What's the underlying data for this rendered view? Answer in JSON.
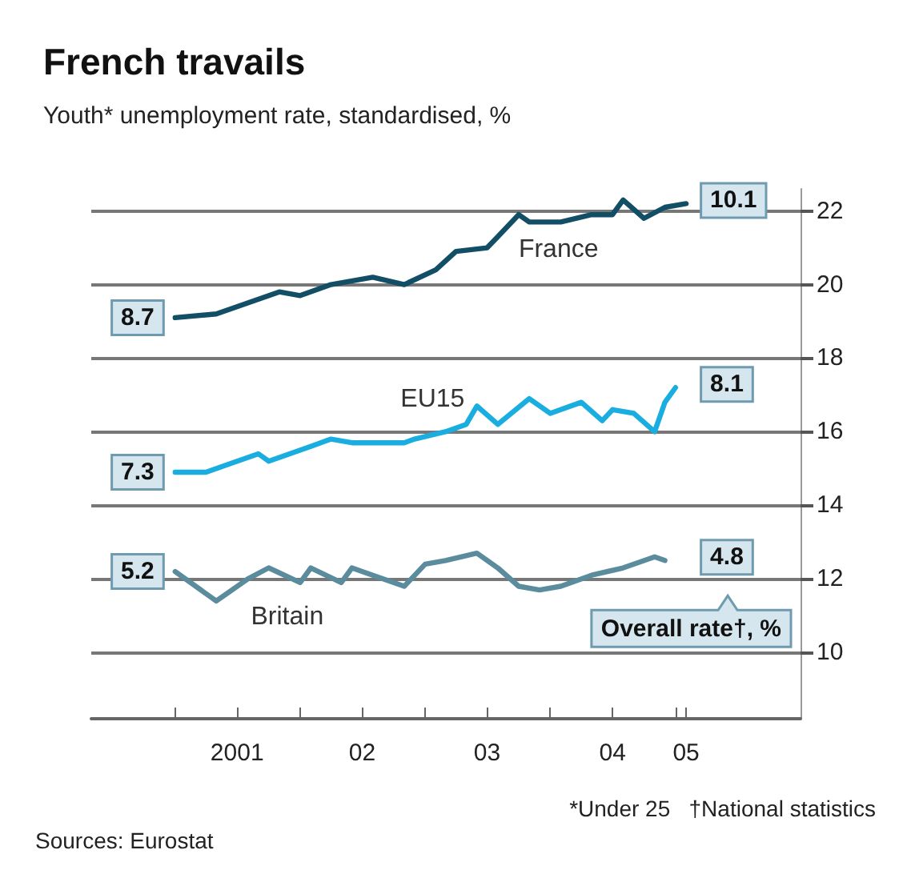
{
  "chart_data": {
    "type": "line",
    "title": "French travails",
    "subtitle": "Youth* unemployment rate, standardised, %",
    "series": [
      {
        "name": "France",
        "color": "#124e66",
        "x": [
          "2001-01",
          "2001-05",
          "2001-08",
          "2001-11",
          "2002-01",
          "2002-04",
          "2002-08",
          "2002-11",
          "2003-02",
          "2003-04",
          "2003-07",
          "2003-08",
          "2003-10",
          "2003-11",
          "2004-02",
          "2004-05",
          "2004-07",
          "2004-08",
          "2004-10",
          "2004-12",
          "2005-02"
        ],
        "values": [
          19.1,
          19.2,
          19.5,
          19.8,
          19.7,
          20.0,
          20.2,
          20.0,
          20.4,
          20.9,
          21.0,
          21.3,
          21.9,
          21.7,
          21.7,
          21.9,
          21.9,
          22.3,
          21.8,
          22.1,
          22.2
        ]
      },
      {
        "name": "EU15",
        "color": "#1aaee0",
        "x": [
          "2001-01",
          "2001-04",
          "2001-06",
          "2001-09",
          "2001-10",
          "2002-02",
          "2002-04",
          "2002-06",
          "2002-11",
          "2002-12",
          "2003-03",
          "2003-05",
          "2003-06",
          "2003-08",
          "2003-11",
          "2004-01",
          "2004-04",
          "2004-06",
          "2004-07",
          "2004-09",
          "2004-11",
          "2004-12",
          "2005-01"
        ],
        "values": [
          14.9,
          14.9,
          15.1,
          15.4,
          15.2,
          15.6,
          15.8,
          15.7,
          15.7,
          15.8,
          16.0,
          16.2,
          16.7,
          16.2,
          16.9,
          16.5,
          16.8,
          16.3,
          16.6,
          16.5,
          16.0,
          16.8,
          17.2
        ]
      },
      {
        "name": "Britain",
        "color": "#5b8c9e",
        "x": [
          "2001-01",
          "2001-05",
          "2001-08",
          "2001-10",
          "2002-01",
          "2002-02",
          "2002-05",
          "2002-06",
          "2002-08",
          "2002-11",
          "2003-01",
          "2003-03",
          "2003-06",
          "2003-08",
          "2003-10",
          "2003-12",
          "2004-02",
          "2004-05",
          "2004-08",
          "2004-11",
          "2004-12"
        ],
        "values": [
          12.2,
          11.4,
          12.0,
          12.3,
          11.9,
          12.3,
          11.9,
          12.3,
          12.1,
          11.8,
          12.4,
          12.5,
          12.7,
          12.3,
          11.8,
          11.7,
          11.8,
          12.1,
          12.3,
          12.6,
          12.5
        ]
      }
    ],
    "xlim": [
      "2000-05",
      "2006-01"
    ],
    "xticks": [
      {
        "value": "2001-01",
        "label": null
      },
      {
        "value": "2001-07",
        "label": "2001"
      },
      {
        "value": "2002-01",
        "label": null
      },
      {
        "value": "2002-07",
        "label": "02"
      },
      {
        "value": "2003-01",
        "label": null
      },
      {
        "value": "2003-07",
        "label": "03"
      },
      {
        "value": "2004-01",
        "label": null
      },
      {
        "value": "2004-07",
        "label": "04"
      },
      {
        "value": "2005-01",
        "label": null
      },
      {
        "value": "2005-02",
        "label": "05"
      }
    ],
    "ylim": [
      8.2,
      22.6
    ],
    "yticks": [
      10,
      12,
      14,
      16,
      18,
      20,
      22
    ],
    "grid": "y",
    "legend": false,
    "annotations": [
      {
        "text": "8.7",
        "x": "2001-01",
        "y": 19.1
      },
      {
        "text": "10.1",
        "x": "2005-02",
        "y": 22.2
      },
      {
        "text": "7.3",
        "x": "2001-01",
        "y": 14.9
      },
      {
        "text": "8.1",
        "x": "2005-01",
        "y": 17.2
      },
      {
        "text": "5.2",
        "x": "2001-01",
        "y": 12.2
      },
      {
        "text": "4.8",
        "x": "2004-12",
        "y": 12.5
      },
      "Overall rate†, %",
      "*Under 25",
      "†National statistics",
      "Sources: Eurostat"
    ]
  }
}
